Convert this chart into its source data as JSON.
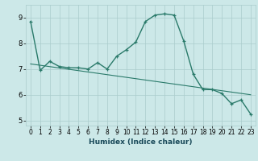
{
  "title": "",
  "xlabel": "Humidex (Indice chaleur)",
  "bg_color": "#cce8e8",
  "grid_color": "#aacccc",
  "line_color": "#2a7a6a",
  "xlim": [
    -0.5,
    23.5
  ],
  "ylim": [
    4.8,
    9.5
  ],
  "yticks": [
    5,
    6,
    7,
    8,
    9
  ],
  "xticks": [
    0,
    1,
    2,
    3,
    4,
    5,
    6,
    7,
    8,
    9,
    10,
    11,
    12,
    13,
    14,
    15,
    16,
    17,
    18,
    19,
    20,
    21,
    22,
    23
  ],
  "main_x": [
    0,
    1,
    2,
    3,
    4,
    5,
    6,
    7,
    8,
    9,
    10,
    11,
    12,
    13,
    14,
    15,
    16,
    17,
    18,
    19,
    20,
    21,
    22,
    23
  ],
  "main_y": [
    8.85,
    6.95,
    7.3,
    7.1,
    7.05,
    7.05,
    7.0,
    7.25,
    7.0,
    7.5,
    7.75,
    8.05,
    8.85,
    9.1,
    9.15,
    9.1,
    8.1,
    6.8,
    6.2,
    6.2,
    6.05,
    5.65,
    5.8,
    5.25
  ],
  "trend_x": [
    0,
    23
  ],
  "trend_y": [
    7.2,
    6.0
  ],
  "xlabel_fontsize": 6.5,
  "tick_fontsize": 5.5,
  "ytick_fontsize": 6.0
}
